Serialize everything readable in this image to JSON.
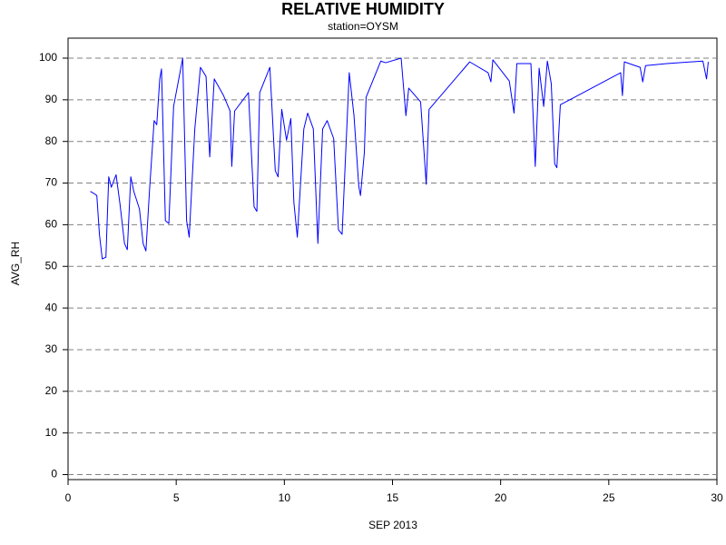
{
  "chart_data": {
    "type": "line",
    "title": "RELATIVE HUMIDITY",
    "subtitle": "station=OYSM",
    "x_label": "SEP 2013",
    "y_label": "AVG_RH",
    "xlim": [
      0,
      30
    ],
    "ylim": [
      -1.2,
      104.8
    ],
    "xticks": [
      0,
      5,
      10,
      15,
      20,
      25,
      30
    ],
    "yticks": [
      0,
      10,
      20,
      30,
      40,
      50,
      60,
      70,
      80,
      90,
      100
    ],
    "grid": true,
    "series": [
      {
        "name": "AVG_RH",
        "color": "#0000ff",
        "x": [
          1.03,
          1.2,
          1.33,
          1.45,
          1.58,
          1.75,
          1.88,
          2.0,
          2.22,
          2.4,
          2.61,
          2.74,
          2.9,
          3.04,
          3.3,
          3.47,
          3.6,
          3.77,
          3.98,
          4.1,
          4.24,
          4.32,
          4.5,
          4.66,
          4.88,
          5.3,
          5.48,
          5.6,
          5.86,
          6.12,
          6.38,
          6.55,
          6.76,
          7.19,
          7.49,
          7.57,
          7.7,
          8.34,
          8.6,
          8.73,
          8.86,
          9.33,
          9.58,
          9.71,
          9.88,
          10.1,
          10.3,
          10.44,
          10.6,
          10.9,
          11.08,
          11.34,
          11.55,
          11.77,
          11.98,
          12.28,
          12.5,
          12.67,
          13.0,
          13.22,
          13.44,
          13.52,
          13.7,
          13.78,
          14.46,
          14.68,
          15.4,
          15.62,
          15.75,
          16.3,
          16.56,
          16.69,
          18.57,
          19.42,
          19.55,
          19.64,
          20.4,
          20.62,
          20.75,
          21.4,
          21.6,
          21.78,
          21.99,
          22.16,
          22.34,
          22.5,
          22.6,
          22.76,
          25.55,
          25.63,
          25.72,
          26.45,
          26.57,
          26.7,
          27.68,
          29.35,
          29.52,
          29.6
        ],
        "values": [
          68,
          67.5,
          67,
          57.7,
          51.8,
          52.2,
          71.5,
          69,
          72,
          65,
          55.5,
          54,
          71.5,
          68,
          63.8,
          55.5,
          53.7,
          68.6,
          85,
          84,
          95,
          97.4,
          61,
          60.3,
          88.4,
          100,
          61,
          57,
          83,
          97.8,
          95.6,
          76.3,
          95,
          91,
          87.3,
          74,
          87.3,
          91.7,
          64.3,
          63.2,
          91.7,
          97.8,
          73,
          71.5,
          87.7,
          80.3,
          85.5,
          65.4,
          57,
          83,
          86.8,
          83,
          55.5,
          83,
          85,
          80.7,
          58.8,
          57.7,
          96.5,
          86.2,
          69.3,
          67,
          77.4,
          90.6,
          99.3,
          98.9,
          100,
          86.2,
          92.8,
          89.5,
          69.7,
          87.7,
          99.1,
          96.5,
          94.3,
          99.6,
          94.5,
          86.8,
          98.7,
          98.7,
          74,
          97.6,
          88.4,
          99.3,
          93.9,
          74.6,
          73.7,
          88.8,
          96.5,
          91,
          99.1,
          97.8,
          94.3,
          98.2,
          98.7,
          99.3,
          95,
          99.1
        ]
      }
    ]
  }
}
